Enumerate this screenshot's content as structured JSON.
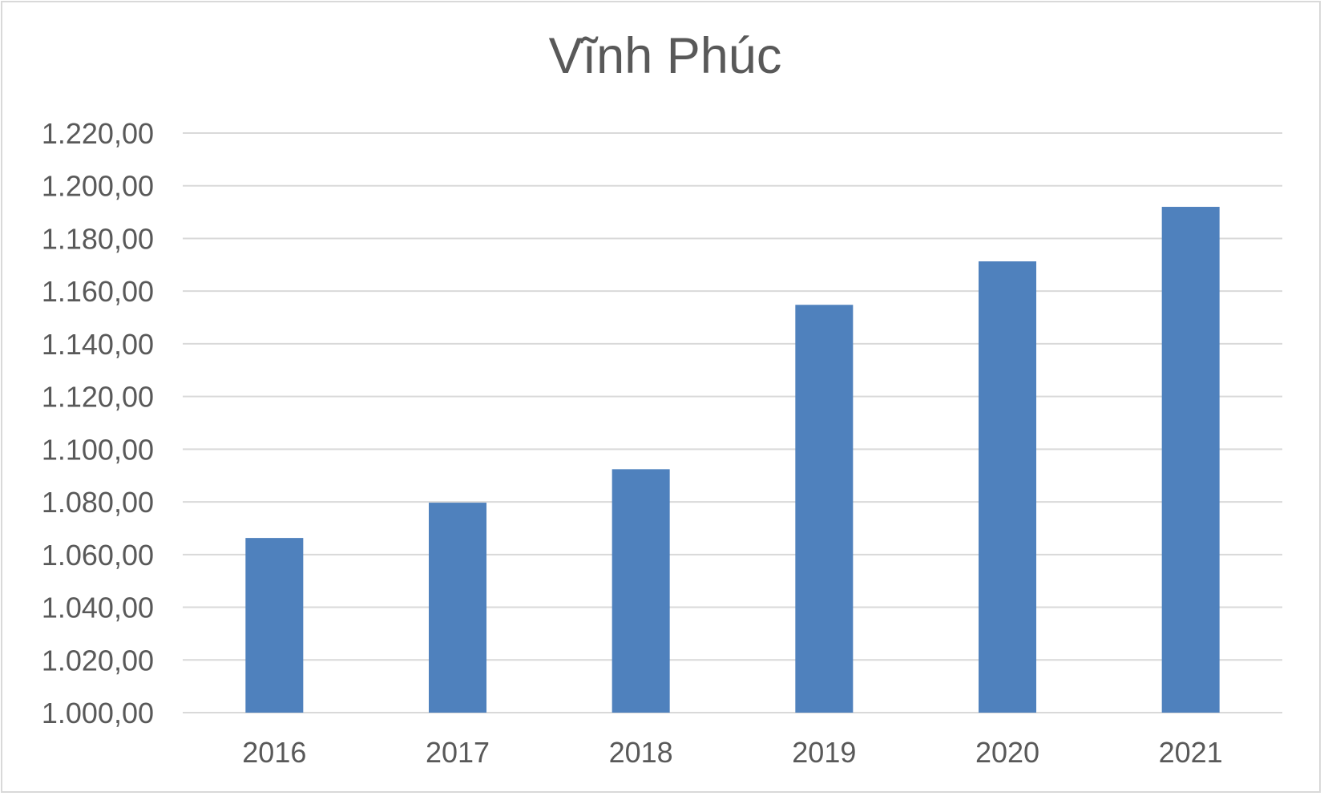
{
  "chart_data": {
    "type": "bar",
    "title": "Vĩnh Phúc",
    "xlabel": "",
    "ylabel": "",
    "categories": [
      "2016",
      "2017",
      "2018",
      "2019",
      "2020",
      "2021"
    ],
    "values": [
      1066.3,
      1079.7,
      1092.4,
      1154.8,
      1171.3,
      1192.0
    ],
    "ylim": [
      1000,
      1220
    ],
    "yticks": [
      1000,
      1020,
      1040,
      1060,
      1080,
      1100,
      1120,
      1140,
      1160,
      1180,
      1200,
      1220
    ],
    "ytick_labels": [
      "1.000,00",
      "1.020,00",
      "1.040,00",
      "1.060,00",
      "1.080,00",
      "1.100,00",
      "1.120,00",
      "1.140,00",
      "1.160,00",
      "1.180,00",
      "1.200,00",
      "1.220,00"
    ],
    "grid": true,
    "legend": "none",
    "bar_color": "#4f81bd",
    "grid_color": "#d9d9d9",
    "text_color": "#595959"
  }
}
